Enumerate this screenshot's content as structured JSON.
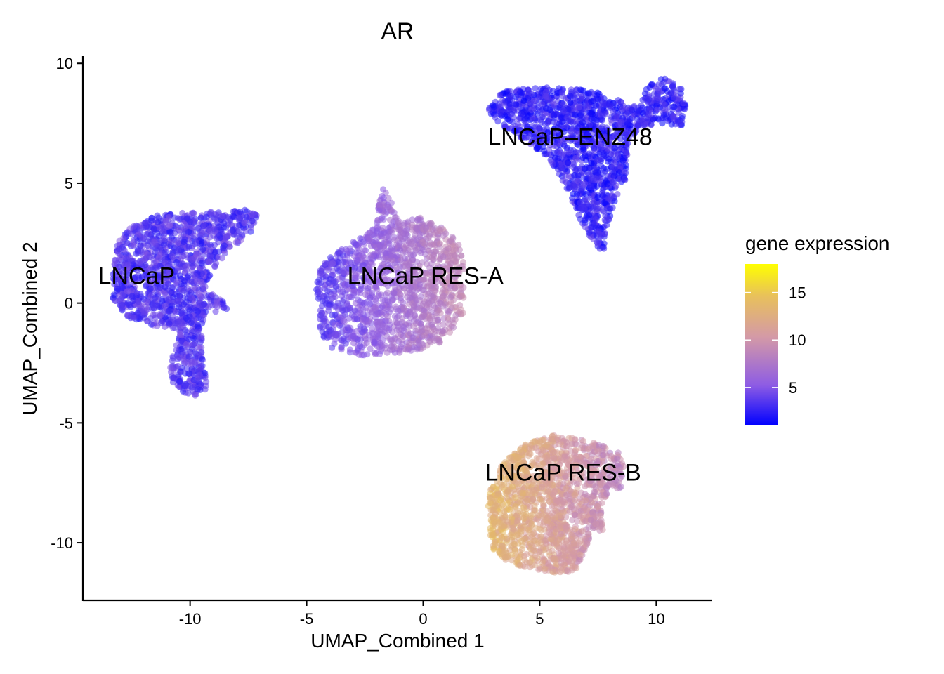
{
  "chart_data": {
    "type": "scatter",
    "title": "AR",
    "xlabel": "UMAP_Combined 1",
    "ylabel": "UMAP_Combined 2",
    "xlim": [
      -14.6,
      12.4
    ],
    "ylim": [
      -12.4,
      10.3
    ],
    "x_ticks": [
      -10,
      -5,
      0,
      5,
      10
    ],
    "y_ticks": [
      -10,
      -5,
      0,
      5,
      10
    ],
    "x_tick_labels": [
      "-10",
      "-5",
      "0",
      "5",
      "10"
    ],
    "y_tick_labels": [
      "-10",
      "-5",
      "0",
      "5",
      "10"
    ],
    "grid": false,
    "legend": {
      "title": "gene expression",
      "position": "right",
      "min": 1,
      "max": 18,
      "ticks": [
        5,
        10,
        15
      ],
      "tick_labels": [
        "5",
        "10",
        "15"
      ],
      "colors": [
        "#0000FF",
        "#8E5CE4",
        "#D49AA6",
        "#E8C05C",
        "#FFFF00"
      ]
    },
    "cluster_labels": [
      {
        "text": "LNCaP",
        "x": -12.3,
        "y": 0.8
      },
      {
        "text": "LNCaP RES-A",
        "x": 0.1,
        "y": 0.8
      },
      {
        "text": "LNCaP–ENZ48",
        "x": 6.3,
        "y": 6.6
      },
      {
        "text": "LNCaP RES-B",
        "x": 6.0,
        "y": -7.4
      }
    ],
    "clusters": [
      {
        "name": "LNCaP",
        "expression": 3.5,
        "polygon": [
          [
            -13.2,
            2.4
          ],
          [
            -12.5,
            3.2
          ],
          [
            -11.3,
            3.7
          ],
          [
            -9.5,
            3.8
          ],
          [
            -7.3,
            3.9
          ],
          [
            -7.1,
            3.6
          ],
          [
            -7.4,
            2.9
          ],
          [
            -8.3,
            2.2
          ],
          [
            -9.0,
            1.4
          ],
          [
            -9.3,
            0.9
          ],
          [
            -9.3,
            0.5
          ],
          [
            -8.7,
            0.2
          ],
          [
            -8.3,
            -0.3
          ],
          [
            -8.7,
            -0.4
          ],
          [
            -9.3,
            -0.3
          ],
          [
            -9.5,
            -1.0
          ],
          [
            -9.5,
            -2.0
          ],
          [
            -9.3,
            -3.0
          ],
          [
            -9.3,
            -3.7
          ],
          [
            -9.8,
            -4.0
          ],
          [
            -10.5,
            -3.6
          ],
          [
            -10.9,
            -3.1
          ],
          [
            -10.8,
            -2.3
          ],
          [
            -10.5,
            -1.5
          ],
          [
            -10.6,
            -1.1
          ],
          [
            -11.7,
            -0.9
          ],
          [
            -12.7,
            -0.6
          ],
          [
            -13.3,
            0.2
          ],
          [
            -13.3,
            1.3
          ]
        ]
      },
      {
        "name": "LNCaP RES-A",
        "expression": 5.5,
        "polygon": [
          [
            -4.4,
            1.6
          ],
          [
            -3.6,
            2.3
          ],
          [
            -2.5,
            2.8
          ],
          [
            -2.0,
            3.2
          ],
          [
            -1.9,
            4.2
          ],
          [
            -1.7,
            4.8
          ],
          [
            -1.4,
            4.3
          ],
          [
            -1.1,
            3.4
          ],
          [
            0.0,
            3.6
          ],
          [
            1.0,
            3.1
          ],
          [
            1.7,
            2.2
          ],
          [
            1.8,
            0.7
          ],
          [
            1.7,
            -0.5
          ],
          [
            0.9,
            -1.6
          ],
          [
            -0.2,
            -2.0
          ],
          [
            -1.4,
            -2.1
          ],
          [
            -2.6,
            -2.2
          ],
          [
            -3.8,
            -2.0
          ],
          [
            -4.4,
            -1.3
          ],
          [
            -4.5,
            -0.2
          ],
          [
            -4.6,
            0.7
          ]
        ]
      },
      {
        "name": "LNCaP–ENZ48",
        "expression": 2.5,
        "polygon": [
          [
            2.9,
            8.6
          ],
          [
            3.7,
            8.9
          ],
          [
            5.5,
            9.0
          ],
          [
            7.0,
            8.9
          ],
          [
            8.0,
            8.7
          ],
          [
            8.7,
            8.3
          ],
          [
            9.3,
            8.2
          ],
          [
            9.6,
            9.0
          ],
          [
            10.2,
            9.4
          ],
          [
            11.0,
            9.2
          ],
          [
            11.3,
            8.2
          ],
          [
            11.1,
            7.4
          ],
          [
            10.2,
            7.5
          ],
          [
            9.3,
            7.3
          ],
          [
            8.8,
            6.8
          ],
          [
            8.7,
            5.2
          ],
          [
            8.2,
            4.2
          ],
          [
            7.9,
            3.2
          ],
          [
            7.8,
            2.1
          ],
          [
            7.3,
            2.5
          ],
          [
            6.6,
            3.7
          ],
          [
            6.2,
            4.7
          ],
          [
            5.4,
            6.0
          ],
          [
            4.4,
            6.8
          ],
          [
            3.3,
            7.4
          ],
          [
            2.8,
            7.9
          ]
        ]
      },
      {
        "name": "LNCaP RES-B",
        "expression": 11.5,
        "polygon": [
          [
            3.4,
            -6.7
          ],
          [
            4.3,
            -5.9
          ],
          [
            5.7,
            -5.5
          ],
          [
            6.8,
            -5.7
          ],
          [
            7.6,
            -5.9
          ],
          [
            8.4,
            -6.2
          ],
          [
            8.6,
            -6.8
          ],
          [
            8.5,
            -7.7
          ],
          [
            7.9,
            -8.0
          ],
          [
            7.8,
            -8.3
          ],
          [
            7.6,
            -8.9
          ],
          [
            7.8,
            -9.5
          ],
          [
            7.2,
            -9.6
          ],
          [
            6.9,
            -10.4
          ],
          [
            6.6,
            -11.1
          ],
          [
            6.0,
            -11.3
          ],
          [
            4.8,
            -11.1
          ],
          [
            3.8,
            -10.9
          ],
          [
            3.0,
            -10.3
          ],
          [
            2.8,
            -9.3
          ],
          [
            2.8,
            -8.2
          ],
          [
            3.0,
            -7.3
          ]
        ]
      }
    ]
  }
}
